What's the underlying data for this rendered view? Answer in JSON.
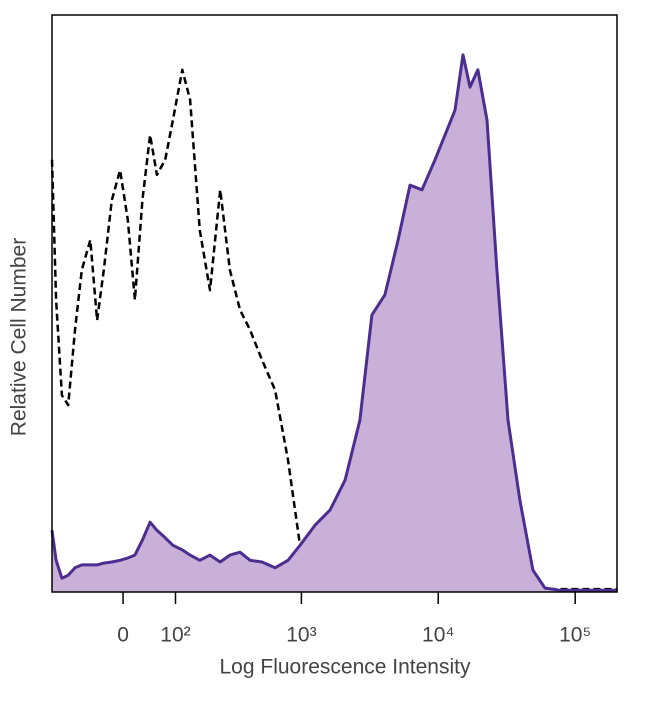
{
  "chart_data": {
    "type": "histogram-overlay",
    "x_label": "Log Fluorescence Intensity",
    "y_label": "Relative Cell Number",
    "xscale": "biexponential",
    "xlim": [
      -150,
      202000
    ],
    "ylim": [
      0,
      100
    ],
    "xticks": [
      0,
      {
        "value": 100,
        "label": "10²"
      },
      {
        "value": 1000,
        "label": "10³"
      },
      {
        "value": 10000,
        "label": "10⁴"
      },
      {
        "value": 100000,
        "label": "10⁵"
      }
    ],
    "x": [
      -150,
      -138,
      -122,
      -106,
      -90,
      -75,
      -58,
      -45,
      -33,
      -19,
      -5,
      8,
      20,
      33,
      47,
      60,
      77,
      94,
      117,
      138,
      168,
      204,
      246,
      293,
      350,
      417,
      512,
      640,
      797,
      977,
      1260,
      1620,
      2090,
      2680,
      3280,
      4080,
      5090,
      6220,
      7610,
      9470,
      11200,
      13250,
      15160,
      17050,
      19500,
      22700,
      26800,
      32300,
      39500,
      49100,
      60100,
      77400,
      108300,
      151600,
      202000
    ],
    "series": [
      {
        "color": "#000000",
        "line_style": "dashed",
        "filled": false,
        "values": [
          74.9,
          50.6,
          34.1,
          32.4,
          45.4,
          55.8,
          61.0,
          47.1,
          55.8,
          67.9,
          73.1,
          64.5,
          50.6,
          67.9,
          79.2,
          72.3,
          74.9,
          81.8,
          90.5,
          85.3,
          62.7,
          52.3,
          69.7,
          55.8,
          48.9,
          45.4,
          40.2,
          35.0,
          22.9,
          8.1,
          5.5,
          6.9,
          2.9,
          0.9,
          0.7,
          0.5,
          0.5,
          0.5,
          0.5,
          0.5,
          0.5,
          0.5,
          0.5,
          0.5,
          0.5,
          0.5,
          0.5,
          0.5,
          0.5,
          0.5,
          0.5,
          0.5,
          0.5,
          0.5,
          0.5
        ]
      },
      {
        "color": "#4b2e8f",
        "fill_color": "#c9b0d8",
        "line_style": "solid",
        "filled": true,
        "values": [
          10.7,
          5.5,
          2.4,
          2.9,
          4.2,
          4.7,
          4.7,
          4.7,
          5.0,
          5.2,
          5.5,
          5.9,
          6.4,
          9.0,
          12.1,
          10.7,
          9.4,
          8.1,
          7.3,
          6.4,
          5.5,
          6.4,
          5.2,
          6.4,
          6.9,
          5.5,
          5.2,
          4.2,
          5.5,
          8.1,
          11.6,
          14.2,
          19.4,
          29.8,
          48.0,
          51.5,
          61.0,
          70.5,
          69.7,
          74.9,
          79.2,
          83.5,
          93.1,
          87.5,
          90.5,
          81.8,
          55.8,
          29.8,
          15.9,
          3.8,
          0.7,
          0.3,
          0.3,
          0.3,
          0.3
        ]
      }
    ]
  }
}
